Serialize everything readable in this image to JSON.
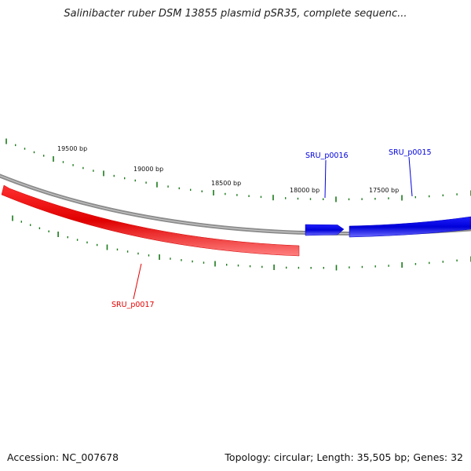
{
  "title": "Salinibacter ruber DSM 13855 plasmid pSR35, complete sequenc...",
  "footer": {
    "accession": "Accession: NC_007678",
    "summary": "Topology: circular; Length: 35,505 bp; Genes: 32"
  },
  "position_labels": [
    "19500 bp",
    "19000 bp",
    "18500 bp",
    "18000 bp",
    "17500 bp"
  ],
  "genes": [
    {
      "name": "SRU_p0017",
      "strand": "reverse",
      "color": "#e60000"
    },
    {
      "name": "SRU_p0016",
      "strand": "forward",
      "color": "#0000e0"
    },
    {
      "name": "SRU_p0015",
      "strand": "forward",
      "color": "#0000e0"
    }
  ],
  "colors": {
    "backbone": "#8a8a8a",
    "ticks": "#1a7a1a",
    "forward_gene": "#0000e0",
    "reverse_gene": "#e60000"
  }
}
